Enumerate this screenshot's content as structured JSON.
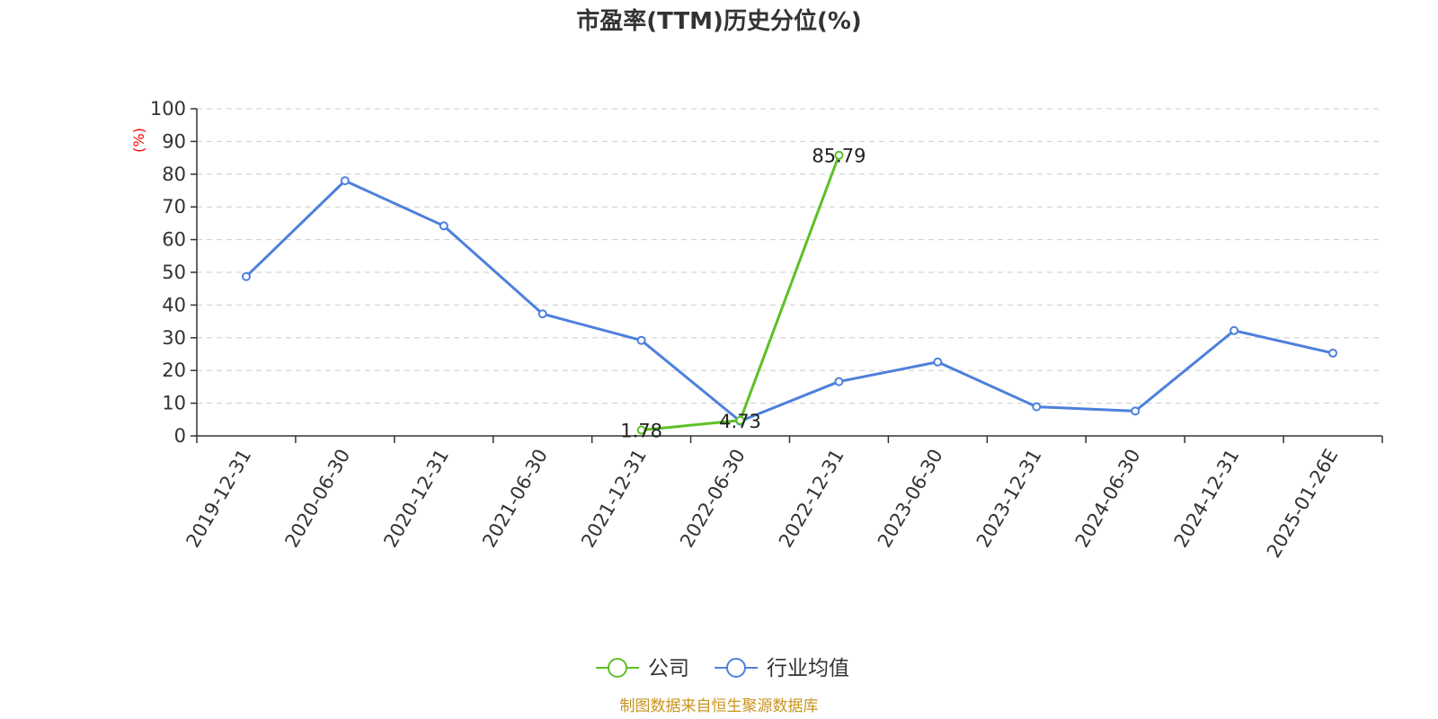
{
  "chart_data": {
    "type": "line",
    "title": "市盈率(TTM)历史分位(%)",
    "ylabel": "(%)",
    "ylim": [
      0,
      100
    ],
    "yticks": [
      0,
      10,
      20,
      30,
      40,
      50,
      60,
      70,
      80,
      90,
      100
    ],
    "grid": true,
    "legend_position": "bottom",
    "categories": [
      "2019-12-31",
      "2020-06-30",
      "2020-12-31",
      "2021-06-30",
      "2021-12-31",
      "2022-06-30",
      "2022-12-31",
      "2023-06-30",
      "2023-12-31",
      "2024-06-30",
      "2024-12-31",
      "2025-01-26E"
    ],
    "series": [
      {
        "name": "公司",
        "color": "#5cc026",
        "values": [
          null,
          null,
          null,
          null,
          1.78,
          4.73,
          85.79,
          null,
          null,
          null,
          null,
          null
        ],
        "labels": [
          null,
          null,
          null,
          null,
          "1.78",
          "4.73",
          "85.79",
          null,
          null,
          null,
          null,
          null
        ]
      },
      {
        "name": "行业均值",
        "color": "#4d80dc",
        "values": [
          48.7,
          78.0,
          64.2,
          37.3,
          29.2,
          4.5,
          16.6,
          22.6,
          8.9,
          7.6,
          32.2,
          25.3
        ]
      }
    ],
    "source": "制图数据来自恒生聚源数据库"
  }
}
